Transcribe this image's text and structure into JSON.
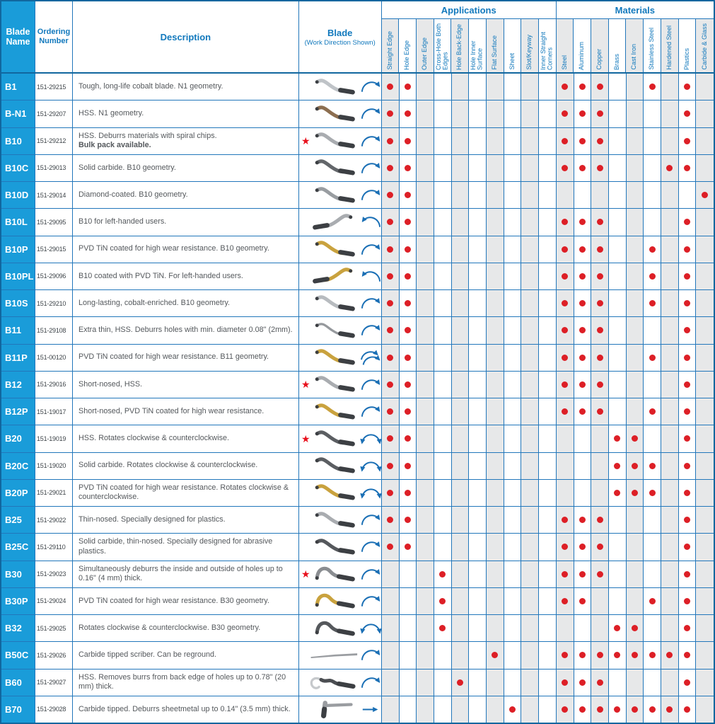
{
  "header": {
    "blade_name": "Blade Name",
    "ordering_number": "Ordering Number",
    "description": "Description",
    "blade_title": "Blade",
    "blade_subtitle": "(Work Direction Shown)",
    "applications_title": "Applications",
    "materials_title": "Materials",
    "application_columns": [
      "Straight Edge",
      "Hole Edge",
      "Outer Edge",
      "Cross-Hole Both Edges",
      "Hole Back-Edge",
      "Hole Inner Surface",
      "Flat Surface",
      "Sheet",
      "Slot/Keyway",
      "Inner Straight Corners"
    ],
    "material_columns": [
      "Steel",
      "Aluminum",
      "Copper",
      "Brass",
      "Cast Iron",
      "Stainless Steel",
      "Hardened Steel",
      "Plastics",
      "Carbide & Glass"
    ]
  },
  "symbols": {
    "star": "★"
  },
  "colors": {
    "cell_blue": "#1a9cd9",
    "border_blue": "#2277bb",
    "frame_blue": "#11679f",
    "text_blue": "#1279bd",
    "text_gray": "#54585c",
    "shade_gray": "#e7e8e9",
    "dot_red": "#dd1f26",
    "star_red": "#e8101c",
    "arrow_blue": "#1a6fb5"
  },
  "rows": [
    {
      "name": "B1",
      "order": "151-29215",
      "description": "Tough, long-life cobalt blade. N1 geometry.",
      "description_bold": "",
      "star": false,
      "blade": {
        "shape": "s-curve",
        "color": "#bfc3c7"
      },
      "arrow": "clockwise",
      "applications": [
        "Straight Edge",
        "Hole Edge"
      ],
      "materials": [
        "Steel",
        "Aluminum",
        "Copper",
        "Stainless Steel",
        "Plastics"
      ]
    },
    {
      "name": "B-N1",
      "order": "151-29207",
      "description": "HSS. N1 geometry.",
      "description_bold": "",
      "star": false,
      "blade": {
        "shape": "s-curve",
        "color": "#8c6e50"
      },
      "arrow": "clockwise",
      "applications": [
        "Straight Edge",
        "Hole Edge"
      ],
      "materials": [
        "Steel",
        "Aluminum",
        "Copper",
        "Plastics"
      ]
    },
    {
      "name": "B10",
      "order": "151-29212",
      "description": "HSS. Deburrs materials with spiral chips.",
      "description_bold": "Bulk pack available.",
      "star": true,
      "blade": {
        "shape": "s-curve",
        "color": "#a9acb0"
      },
      "arrow": "clockwise",
      "applications": [
        "Straight Edge",
        "Hole Edge"
      ],
      "materials": [
        "Steel",
        "Aluminum",
        "Copper",
        "Plastics"
      ]
    },
    {
      "name": "B10C",
      "order": "151-29013",
      "description": "Solid carbide. B10 geometry.",
      "description_bold": "",
      "star": false,
      "blade": {
        "shape": "s-curve",
        "color": "#63666a"
      },
      "arrow": "clockwise",
      "applications": [
        "Straight Edge",
        "Hole Edge"
      ],
      "materials": [
        "Steel",
        "Aluminum",
        "Copper",
        "Hardened Steel",
        "Plastics"
      ]
    },
    {
      "name": "B10D",
      "order": "151-29014",
      "description": "Diamond-coated. B10 geometry.",
      "description_bold": "",
      "star": false,
      "blade": {
        "shape": "s-curve",
        "color": "#999da1"
      },
      "arrow": "clockwise",
      "applications": [
        "Straight Edge",
        "Hole Edge"
      ],
      "materials": [
        "Carbide & Glass"
      ]
    },
    {
      "name": "B10L",
      "order": "151-29095",
      "description": "B10 for left-handed users.",
      "description_bold": "",
      "star": false,
      "blade": {
        "shape": "s-curve-mirrored",
        "color": "#a9acb0"
      },
      "arrow": "counterclockwise",
      "applications": [
        "Straight Edge",
        "Hole Edge"
      ],
      "materials": [
        "Steel",
        "Aluminum",
        "Copper",
        "Plastics"
      ]
    },
    {
      "name": "B10P",
      "order": "151-29015",
      "description": "PVD TiN coated for high wear resistance. B10 geometry.",
      "description_bold": "",
      "star": false,
      "blade": {
        "shape": "s-curve",
        "color": "#c9a23e"
      },
      "arrow": "clockwise",
      "applications": [
        "Straight Edge",
        "Hole Edge"
      ],
      "materials": [
        "Steel",
        "Aluminum",
        "Copper",
        "Stainless Steel",
        "Plastics"
      ]
    },
    {
      "name": "B10PL",
      "order": "151-29096",
      "description": "B10 coated with PVD TiN. For left-handed users.",
      "description_bold": "",
      "star": false,
      "blade": {
        "shape": "s-curve-mirrored",
        "color": "#c9a23e"
      },
      "arrow": "counterclockwise",
      "applications": [
        "Straight Edge",
        "Hole Edge"
      ],
      "materials": [
        "Steel",
        "Aluminum",
        "Copper",
        "Stainless Steel",
        "Plastics"
      ]
    },
    {
      "name": "B10S",
      "order": "151-29210",
      "description": "Long-lasting, cobalt-enriched. B10 geometry.",
      "description_bold": "",
      "star": false,
      "blade": {
        "shape": "s-curve",
        "color": "#b7bbbf"
      },
      "arrow": "clockwise",
      "applications": [
        "Straight Edge",
        "Hole Edge"
      ],
      "materials": [
        "Steel",
        "Aluminum",
        "Copper",
        "Stainless Steel",
        "Plastics"
      ]
    },
    {
      "name": "B11",
      "order": "151-29108",
      "description": "Extra thin, HSS. Deburrs holes with min. diameter 0.08\" (2mm).",
      "description_bold": "",
      "star": false,
      "blade": {
        "shape": "s-curve-thin",
        "color": "#96999d"
      },
      "arrow": "clockwise",
      "applications": [
        "Straight Edge",
        "Hole Edge"
      ],
      "materials": [
        "Steel",
        "Aluminum",
        "Copper",
        "Plastics"
      ]
    },
    {
      "name": "B11P",
      "order": "151-00120",
      "description": "PVD TiN coated for high wear resistance. B11 geometry.",
      "description_bold": "",
      "star": false,
      "blade": {
        "shape": "s-curve",
        "color": "#c9a23e"
      },
      "arrow": "double-clockwise",
      "applications": [
        "Straight Edge",
        "Hole Edge"
      ],
      "materials": [
        "Steel",
        "Aluminum",
        "Copper",
        "Stainless Steel",
        "Plastics"
      ]
    },
    {
      "name": "B12",
      "order": "151-29016",
      "description": "Short-nosed, HSS.",
      "description_bold": "",
      "star": true,
      "blade": {
        "shape": "s-curve",
        "color": "#a9acb0"
      },
      "arrow": "clockwise",
      "applications": [
        "Straight Edge",
        "Hole Edge"
      ],
      "materials": [
        "Steel",
        "Aluminum",
        "Copper",
        "Plastics"
      ]
    },
    {
      "name": "B12P",
      "order": "151-19017",
      "description": "Short-nosed, PVD TiN coated for high wear resistance.",
      "description_bold": "",
      "star": false,
      "blade": {
        "shape": "s-curve",
        "color": "#c9a23e"
      },
      "arrow": "clockwise",
      "applications": [
        "Straight Edge",
        "Hole Edge"
      ],
      "materials": [
        "Steel",
        "Aluminum",
        "Copper",
        "Stainless Steel",
        "Plastics"
      ]
    },
    {
      "name": "B20",
      "order": "151-19019",
      "description": "HSS. Rotates clockwise & counterclockwise.",
      "description_bold": "",
      "star": true,
      "blade": {
        "shape": "s-curve",
        "color": "#5b5e62"
      },
      "arrow": "double",
      "applications": [
        "Straight Edge",
        "Hole Edge"
      ],
      "materials": [
        "Brass",
        "Cast Iron",
        "Plastics"
      ]
    },
    {
      "name": "B20C",
      "order": "151-19020",
      "description": "Solid carbide. Rotates clockwise & counterclockwise.",
      "description_bold": "",
      "star": false,
      "blade": {
        "shape": "s-curve",
        "color": "#5b5e62"
      },
      "arrow": "double",
      "applications": [
        "Straight Edge",
        "Hole Edge"
      ],
      "materials": [
        "Brass",
        "Cast Iron",
        "Stainless Steel",
        "Plastics"
      ]
    },
    {
      "name": "B20P",
      "order": "151-29021",
      "description": "PVD TiN coated for high wear resistance. Rotates clockwise & counterclockwise.",
      "description_bold": "",
      "star": false,
      "blade": {
        "shape": "s-curve",
        "color": "#c9a23e"
      },
      "arrow": "double",
      "applications": [
        "Straight Edge",
        "Hole Edge"
      ],
      "materials": [
        "Brass",
        "Cast Iron",
        "Stainless Steel",
        "Plastics"
      ]
    },
    {
      "name": "B25",
      "order": "151-29022",
      "description": "Thin-nosed. Specially designed for plastics.",
      "description_bold": "",
      "star": false,
      "blade": {
        "shape": "s-curve",
        "color": "#a9acb0"
      },
      "arrow": "clockwise",
      "applications": [
        "Straight Edge",
        "Hole Edge"
      ],
      "materials": [
        "Steel",
        "Aluminum",
        "Copper",
        "Plastics"
      ]
    },
    {
      "name": "B25C",
      "order": "151-29110",
      "description": "Solid carbide, thin-nosed. Specially designed for abrasive plastics.",
      "description_bold": "",
      "star": false,
      "blade": {
        "shape": "s-curve",
        "color": "#55585c"
      },
      "arrow": "clockwise",
      "applications": [
        "Straight Edge",
        "Hole Edge"
      ],
      "materials": [
        "Steel",
        "Aluminum",
        "Copper",
        "Plastics"
      ]
    },
    {
      "name": "B30",
      "order": "151-29023",
      "description": "Simultaneously deburrs the inside and outside of holes up to 0.16\" (4 mm) thick.",
      "description_bold": "",
      "star": true,
      "blade": {
        "shape": "hump",
        "color": "#8a8d91"
      },
      "arrow": "clockwise",
      "applications": [
        "Cross-Hole Both Edges"
      ],
      "materials": [
        "Steel",
        "Aluminum",
        "Copper",
        "Plastics"
      ]
    },
    {
      "name": "B30P",
      "order": "151-29024",
      "description": "PVD TiN coated for high wear resistance. B30 geometry.",
      "description_bold": "",
      "star": false,
      "blade": {
        "shape": "hump",
        "color": "#c9a23e"
      },
      "arrow": "clockwise",
      "applications": [
        "Cross-Hole Both Edges"
      ],
      "materials": [
        "Steel",
        "Aluminum",
        "Stainless Steel",
        "Plastics"
      ]
    },
    {
      "name": "B32",
      "order": "151-29025",
      "description": "Rotates clockwise & counterclockwise. B30 geometry.",
      "description_bold": "",
      "star": false,
      "blade": {
        "shape": "hump",
        "color": "#55585c"
      },
      "arrow": "double",
      "applications": [
        "Cross-Hole Both Edges"
      ],
      "materials": [
        "Brass",
        "Cast Iron",
        "Plastics"
      ]
    },
    {
      "name": "B50C",
      "order": "151-29026",
      "description": "Carbide tipped scriber. Can be reground.",
      "description_bold": "",
      "star": false,
      "blade": {
        "shape": "straight-scriber",
        "color": "#9a9da1"
      },
      "arrow": "clockwise",
      "applications": [
        "Flat Surface"
      ],
      "materials": [
        "Steel",
        "Aluminum",
        "Copper",
        "Brass",
        "Cast Iron",
        "Stainless Steel",
        "Hardened Steel",
        "Plastics"
      ]
    },
    {
      "name": "B60",
      "order": "151-29027",
      "description": "HSS. Removes burrs from back edge of holes up to 0.78\" (20 mm) thick.",
      "description_bold": "",
      "star": false,
      "blade": {
        "shape": "hook",
        "color": "#4b4e52"
      },
      "arrow": "clockwise",
      "applications": [
        "Hole Back-Edge"
      ],
      "materials": [
        "Steel",
        "Aluminum",
        "Copper",
        "Plastics"
      ]
    },
    {
      "name": "B70",
      "order": "151-29028",
      "description": "Carbide tipped. Deburrs sheetmetal up to 0.14\" (3.5 mm) thick.",
      "description_bold": "",
      "star": false,
      "blade": {
        "shape": "t-shape",
        "color": "#9a9da1"
      },
      "arrow": "straight-right",
      "applications": [
        "Sheet"
      ],
      "materials": [
        "Steel",
        "Aluminum",
        "Copper",
        "Brass",
        "Cast Iron",
        "Stainless Steel",
        "Hardened Steel",
        "Plastics"
      ]
    }
  ]
}
